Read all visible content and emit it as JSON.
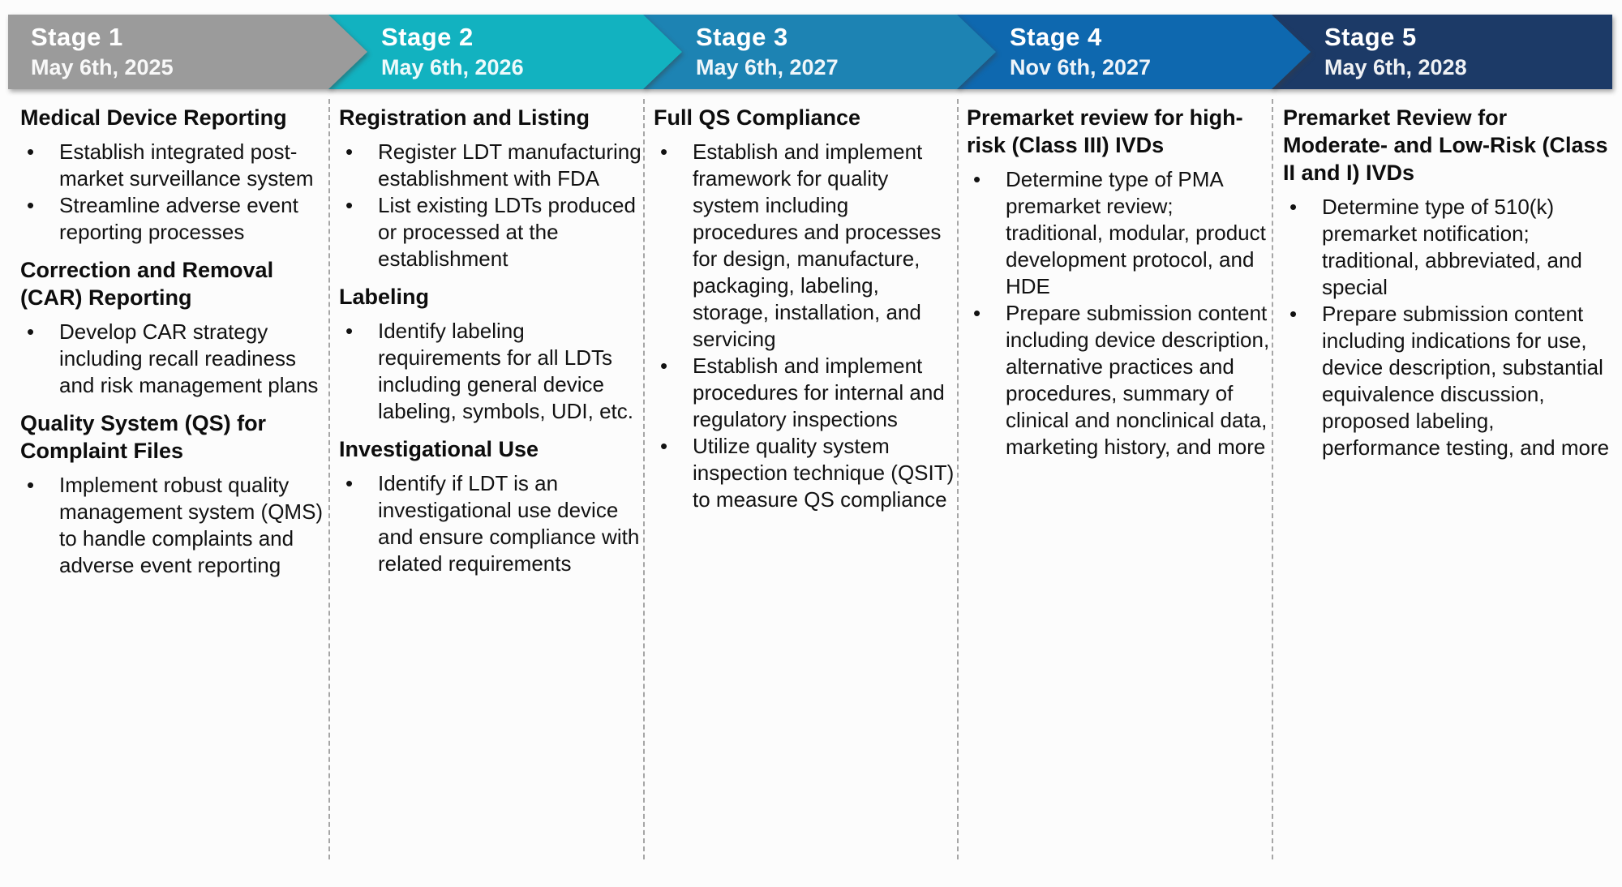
{
  "stages": [
    {
      "label": "Stage 1",
      "date": "May 6th, 2025",
      "color": "#9b9b9b",
      "sections": [
        {
          "heading": "Medical Device Reporting",
          "bullets": [
            "Establish integrated post-market surveillance system",
            "Streamline adverse event reporting processes"
          ]
        },
        {
          "heading": "Correction and Removal (CAR) Reporting",
          "bullets": [
            "Develop CAR strategy including recall readiness and risk management plans"
          ]
        },
        {
          "heading": "Quality System (QS) for Complaint Files",
          "bullets": [
            "Implement robust quality management system (QMS) to handle complaints and adverse event reporting"
          ]
        }
      ]
    },
    {
      "label": "Stage 2",
      "date": "May 6th, 2026",
      "color": "#12b2c0",
      "sections": [
        {
          "heading": "Registration and Listing",
          "bullets": [
            "Register LDT manufacturing establishment with FDA",
            "List existing LDTs produced or processed at the establishment"
          ]
        },
        {
          "heading": "Labeling",
          "bullets": [
            "Identify labeling requirements for all LDTs including general device labeling, symbols, UDI, etc."
          ]
        },
        {
          "heading": "Investigational Use",
          "bullets": [
            "Identify if LDT is an investigational use device and ensure compliance with related requirements"
          ]
        }
      ]
    },
    {
      "label": "Stage 3",
      "date": "May 6th, 2027",
      "color": "#1d83b3",
      "sections": [
        {
          "heading": "Full QS Compliance",
          "bullets": [
            "Establish and implement framework for quality system including procedures and processes for design, manufacture, packaging, labeling, storage, installation, and servicing",
            "Establish and implement procedures for internal and regulatory inspections",
            "Utilize quality system inspection technique (QSIT) to measure QS compliance"
          ]
        }
      ]
    },
    {
      "label": "Stage 4",
      "date": "Nov 6th, 2027",
      "color": "#0e68af",
      "sections": [
        {
          "heading": "Premarket review for high-risk (Class III) IVDs",
          "bullets": [
            "Determine type of PMA premarket review; traditional, modular, product development protocol, and HDE",
            "Prepare submission content including device description, alternative practices and procedures, summary of clinical and nonclinical data, marketing history, and more"
          ]
        }
      ]
    },
    {
      "label": "Stage 5",
      "date": "May 6th, 2028",
      "color": "#1c3a67",
      "sections": [
        {
          "heading": "Premarket Review for Moderate- and Low-Risk (Class II and I) IVDs",
          "bullets": [
            "Determine type of 510(k) premarket notification; traditional, abbreviated, and special",
            "Prepare submission content including indications for use, device description, substantial equivalence discussion, proposed labeling, performance testing, and more"
          ]
        }
      ]
    }
  ]
}
